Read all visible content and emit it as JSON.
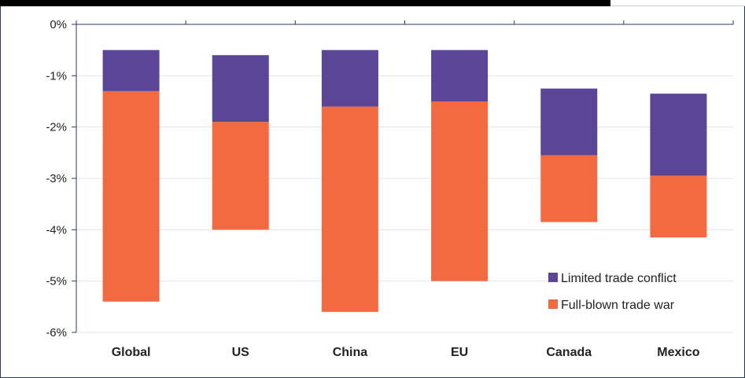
{
  "chart_data": {
    "type": "bar",
    "stacked": true,
    "categories": [
      "Global",
      "US",
      "China",
      "EU",
      "Canada",
      "Mexico"
    ],
    "series": [
      {
        "name": "Limited trade conflict",
        "color": "#5b4596",
        "values": [
          -0.8,
          -1.3,
          -1.1,
          -1.0,
          -1.3,
          -1.6
        ]
      },
      {
        "name": "Full-blown trade war",
        "color": "#f26a42",
        "values": [
          -4.1,
          -2.1,
          -4.0,
          -3.5,
          -1.3,
          -1.2
        ]
      }
    ],
    "bar_starts": [
      -0.5,
      -0.6,
      -0.5,
      -0.5,
      -1.25,
      -1.35
    ],
    "ylim": [
      -6,
      0
    ],
    "yticks": [
      0,
      -1,
      -2,
      -3,
      -4,
      -5,
      -6
    ],
    "ytick_labels": [
      "0%",
      "-1%",
      "-2%",
      "-3%",
      "-4%",
      "-5%",
      "-6%"
    ],
    "grid": true,
    "legend_position": "bottom-right",
    "title": "",
    "xlabel": "",
    "ylabel": ""
  }
}
